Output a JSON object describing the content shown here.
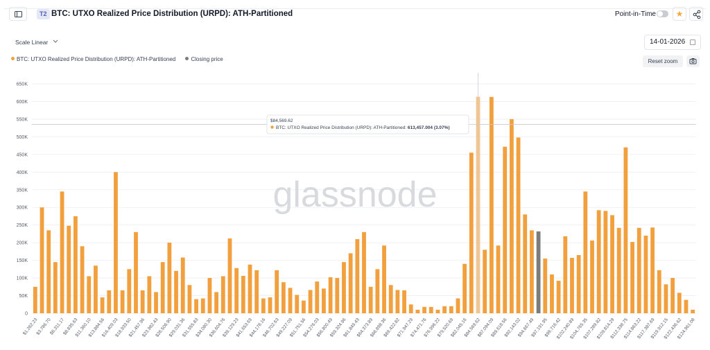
{
  "header": {
    "tier_badge": "T2",
    "title": "BTC: UTXO Realized Price Distribution (URPD): ATH-Partitioned",
    "point_in_time_label": "Point-in-Time",
    "point_in_time_on": false
  },
  "controls": {
    "scale_label": "Scale Linear",
    "date_value": "14-01-2026",
    "reset_zoom_label": "Reset zoom"
  },
  "icons": {
    "sidebar": "sidebar-toggle-icon",
    "star": "star-icon",
    "share": "share-icon",
    "calendar": "calendar-icon",
    "camera": "camera-icon",
    "chevron": "chevron-down-icon"
  },
  "legend": [
    {
      "label": "BTC: UTXO Realized Price Distribution (URPD): ATH-Partitioned",
      "color": "#f2a03d"
    },
    {
      "label": "Closing price",
      "color": "#7c7c7c"
    }
  ],
  "watermark": "glassnode",
  "tooltip": {
    "price": "$84,569.62",
    "series": "BTC: UTXO Realized Price Distribution (URPD): ATH-Partitioned:",
    "value": "613,457.004 (3.07%)"
  },
  "colors": {
    "bar": "#f2a03d",
    "bar_hover": "#f6c58b",
    "closing_bar": "#7c7c7c",
    "grid": "#eceef1",
    "axis_text": "#555b66"
  },
  "chart_data": {
    "type": "bar",
    "y_ticks": [
      0,
      50000,
      100000,
      150000,
      200000,
      250000,
      300000,
      350000,
      400000,
      450000,
      500000,
      550000,
      600000,
      650000
    ],
    "y_tick_labels": [
      "0",
      "50K",
      "100K",
      "150K",
      "200K",
      "250K",
      "300K",
      "350K",
      "400K",
      "450K",
      "500K",
      "550K",
      "600K",
      "650K"
    ],
    "ylim": [
      0,
      650000
    ],
    "x_tick_labels": [
      "$1,262.23",
      "$3,786.70",
      "$6,311.17",
      "$8,835.63",
      "$11,360.10",
      "$13,884.56",
      "$16,409.03",
      "$18,933.50",
      "$21,457.96",
      "$23,982.43",
      "$26,506.90",
      "$29,031.36",
      "$31,555.83",
      "$34,080.30",
      "$36,604.76",
      "$39,129.23",
      "$41,653.69",
      "$44,178.16",
      "$46,702.63",
      "$49,227.09",
      "$51,751.56",
      "$54,276.03",
      "$56,800.49",
      "$59,324.96",
      "$61,849.43",
      "$64,373.89",
      "$66,898.36",
      "$69,422.82",
      "$71,947.29",
      "$74,471.76",
      "$76,996.22",
      "$79,520.69",
      "$82,045.16",
      "$84,569.62",
      "$87,094.09",
      "$89,618.56",
      "$92,143.02",
      "$94,667.49",
      "$97,191.95",
      "$99,716.42",
      "$102,240.89",
      "$104,765.35",
      "$107,289.82",
      "$109,814.29",
      "$112,338.75",
      "$114,863.22",
      "$117,387.69",
      "$119,912.15",
      "$122,436.62",
      "$124,961.08"
    ],
    "values": [
      75000,
      300000,
      235000,
      145000,
      345000,
      248000,
      275000,
      190000,
      105000,
      135000,
      45000,
      65000,
      400000,
      65000,
      125000,
      230000,
      65000,
      105000,
      60000,
      145000,
      200000,
      120000,
      158000,
      80000,
      40000,
      42000,
      100000,
      60000,
      105000,
      212000,
      128000,
      106000,
      138000,
      122000,
      42000,
      45000,
      122000,
      88000,
      72000,
      52000,
      36000,
      66000,
      90000,
      70000,
      102000,
      100000,
      145000,
      170000,
      210000,
      230000,
      75000,
      125000,
      192000,
      80000,
      66000,
      65000,
      25000,
      10000,
      18000,
      18000,
      10000,
      20000,
      20000,
      42000,
      140000,
      455000,
      613457,
      180000,
      613000,
      192000,
      472000,
      550000,
      498000,
      280000,
      235000,
      232000,
      155000,
      110000,
      92000,
      218000,
      157000,
      165000,
      345000,
      206000,
      292000,
      290000,
      278000,
      242000,
      470000,
      202000,
      242000,
      220000,
      243000,
      122000,
      82000,
      100000,
      58000,
      38000,
      10000
    ],
    "highlight_index": 66,
    "closing_price_index": 75,
    "grid": true,
    "legend_position": "top-left"
  }
}
